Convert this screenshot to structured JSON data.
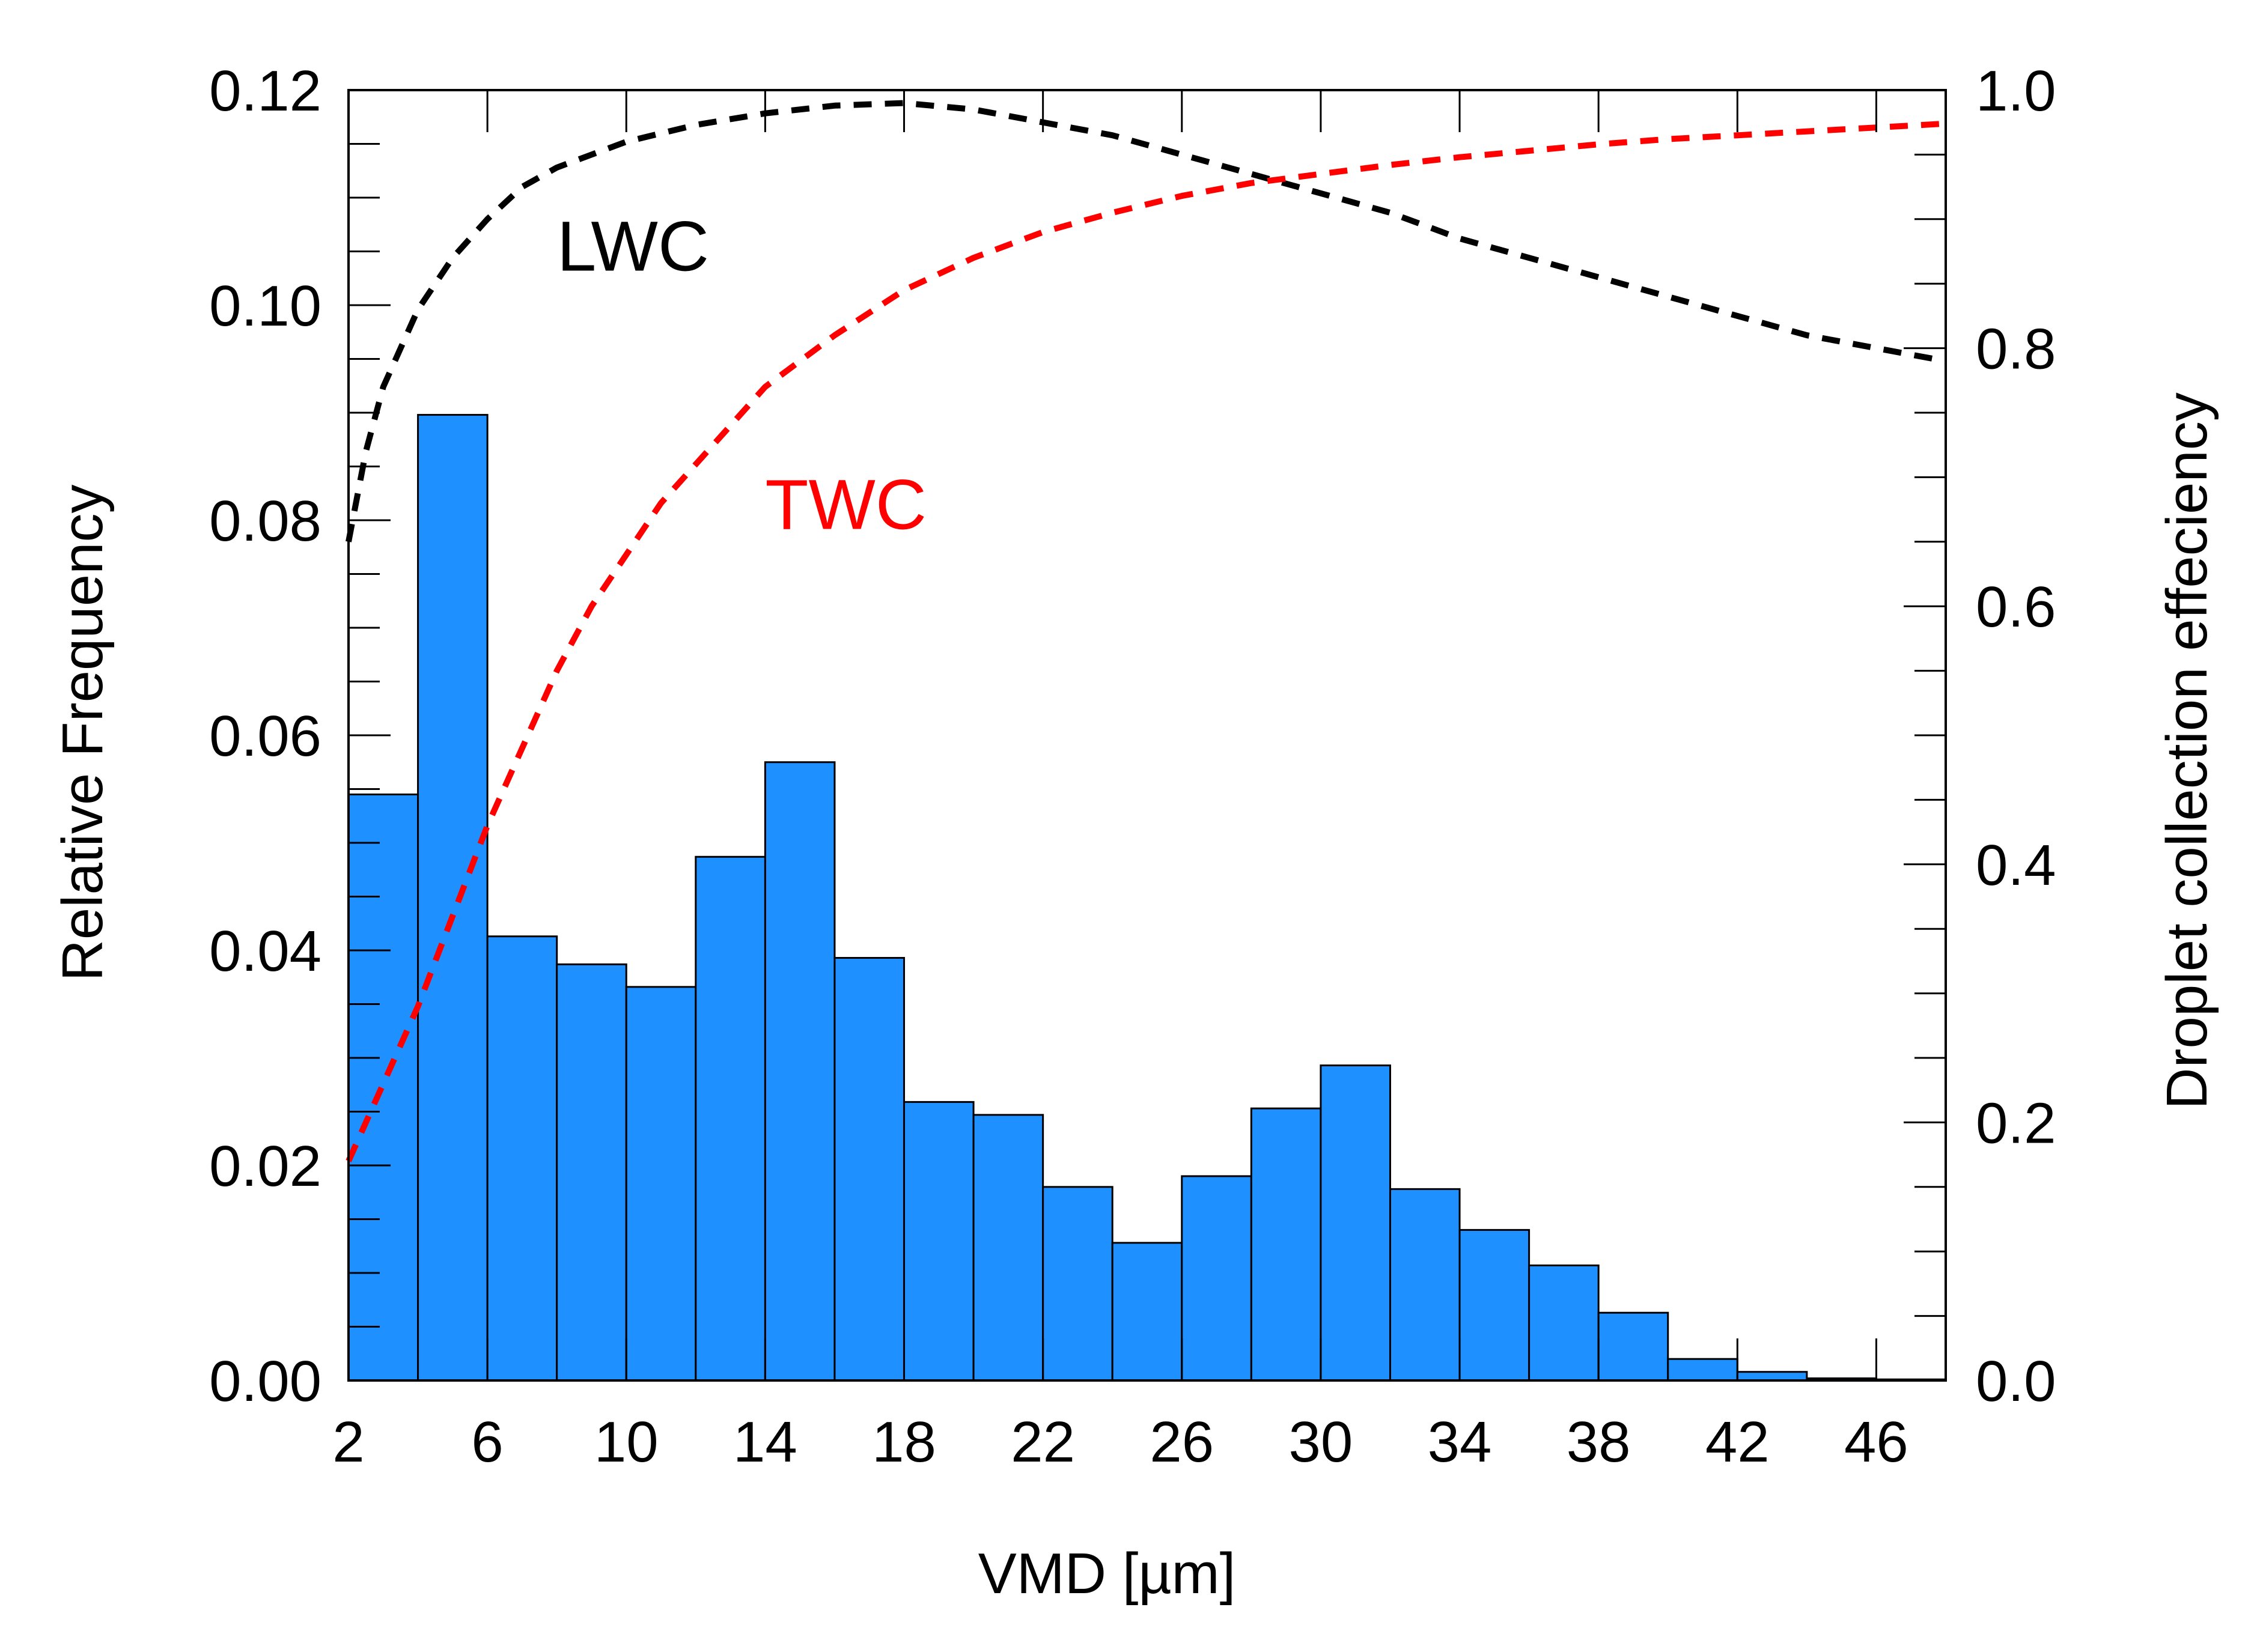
{
  "chart_data": {
    "type": "bar",
    "title": "",
    "xlabel": "VMD [µm]",
    "ylabel": "Relative Frequency",
    "y2label": "Droplet collection effeciency",
    "xlim": [
      2,
      48
    ],
    "ylim": [
      0,
      0.12
    ],
    "y2lim": [
      0,
      1.0
    ],
    "grid": false,
    "bar_color": "#1E90FF",
    "x_ticks": [
      2,
      6,
      10,
      14,
      18,
      22,
      26,
      30,
      34,
      38,
      42,
      46
    ],
    "y_ticks": [
      "0.00",
      "0.02",
      "0.04",
      "0.06",
      "0.08",
      "0.10",
      "0.12"
    ],
    "y2_ticks": [
      "0.0",
      "0.2",
      "0.4",
      "0.6",
      "0.8",
      "1.0"
    ],
    "bin_edges": [
      2,
      4,
      6,
      8,
      10,
      12,
      14,
      16,
      18,
      20,
      22,
      24,
      26,
      28,
      30,
      32,
      34,
      36,
      38,
      40,
      42,
      44,
      46,
      48
    ],
    "values": [
      0.0545,
      0.0898,
      0.0413,
      0.0387,
      0.0366,
      0.0487,
      0.0575,
      0.0393,
      0.0259,
      0.0247,
      0.018,
      0.0128,
      0.019,
      0.0253,
      0.0293,
      0.0178,
      0.014,
      0.0107,
      0.0063,
      0.002,
      0.0008,
      0.0002,
      0.0001
    ],
    "series": [
      {
        "name": "LWC",
        "axis": "right",
        "color": "#000000",
        "style": "dashed",
        "x": [
          2,
          2.5,
          3,
          3.5,
          4,
          5,
          6,
          7,
          8,
          10,
          12,
          14,
          16,
          18,
          20,
          22,
          24,
          26,
          28,
          30,
          32,
          34,
          36,
          38,
          40,
          42,
          44,
          46,
          48
        ],
        "y": [
          0.65,
          0.72,
          0.77,
          0.8,
          0.83,
          0.87,
          0.9,
          0.925,
          0.94,
          0.96,
          0.973,
          0.982,
          0.988,
          0.99,
          0.985,
          0.975,
          0.965,
          0.95,
          0.935,
          0.92,
          0.905,
          0.885,
          0.87,
          0.855,
          0.84,
          0.825,
          0.81,
          0.8,
          0.79
        ]
      },
      {
        "name": "TWC",
        "axis": "right",
        "color": "#FF0000",
        "style": "dashed",
        "x": [
          2,
          3,
          4,
          5,
          6,
          7,
          8,
          9,
          10,
          11,
          12,
          13,
          14,
          16,
          18,
          20,
          22,
          24,
          26,
          28,
          30,
          32,
          34,
          36,
          38,
          40,
          42,
          44,
          46,
          48
        ],
        "y": [
          0.17,
          0.23,
          0.29,
          0.36,
          0.43,
          0.49,
          0.55,
          0.6,
          0.64,
          0.68,
          0.71,
          0.74,
          0.77,
          0.81,
          0.845,
          0.87,
          0.89,
          0.905,
          0.918,
          0.928,
          0.935,
          0.942,
          0.948,
          0.953,
          0.958,
          0.962,
          0.965,
          0.968,
          0.971,
          0.974
        ]
      }
    ],
    "annotations": [
      {
        "text": "LWC",
        "color": "#000000",
        "x": 8,
        "y": 0.86
      },
      {
        "text": "TWC",
        "color": "#FF0000",
        "x": 14,
        "y": 0.66
      }
    ]
  }
}
